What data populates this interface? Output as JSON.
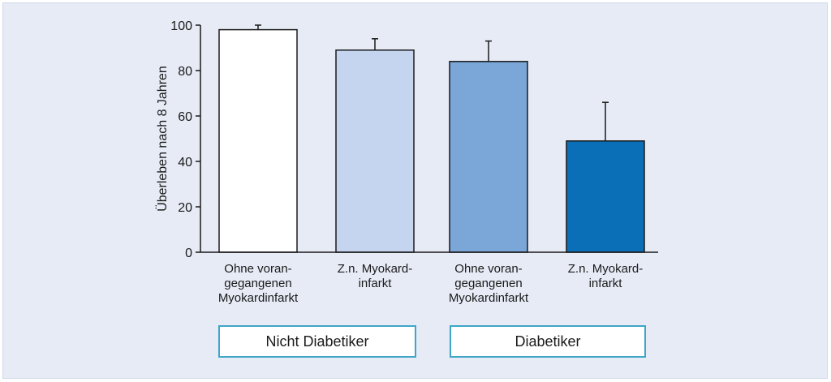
{
  "chart_data": {
    "type": "bar",
    "title": "",
    "xlabel": "",
    "ylabel": "Überleben nach 8 Jahren",
    "ylim": [
      0,
      100
    ],
    "yticks": [
      0,
      20,
      40,
      60,
      80,
      100
    ],
    "categories": [
      [
        "Ohne voran-",
        "gegangenen",
        "Myokardinfarkt"
      ],
      [
        "Z.n. Myokard-",
        "infarkt"
      ],
      [
        "Ohne voran-",
        "gegangenen",
        "Myokardinfarkt"
      ],
      [
        "Z.n. Myokard-",
        "infarkt"
      ]
    ],
    "values": [
      98,
      89,
      84,
      49
    ],
    "errors": [
      2,
      5,
      9,
      17
    ],
    "colors": [
      "#ffffff",
      "#c5d5f0",
      "#7ba6d8",
      "#0a6fb6"
    ],
    "groups": [
      {
        "label": "Nicht Diabetiker",
        "bars": [
          0,
          1
        ]
      },
      {
        "label": "Diabetiker",
        "bars": [
          2,
          3
        ]
      }
    ]
  },
  "theme": {
    "panel_bg": "#e6ebf6",
    "axis_color": "#1a1a1a",
    "group_border": "#3fa6c8"
  }
}
